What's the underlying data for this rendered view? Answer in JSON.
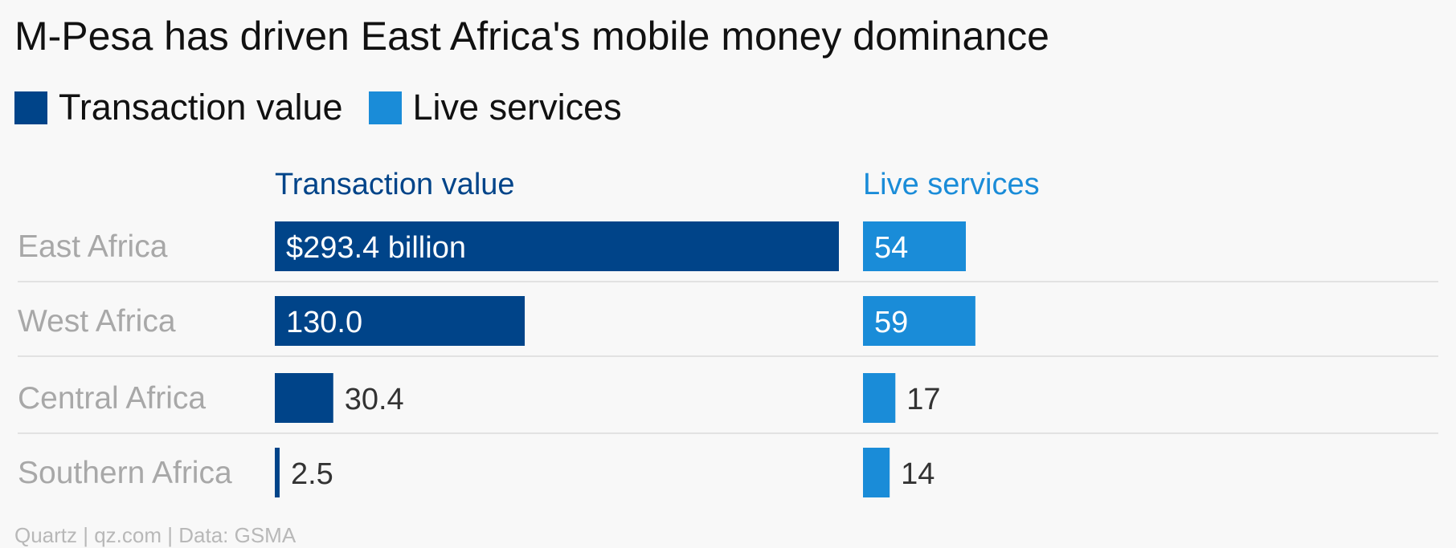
{
  "chart_data": {
    "type": "bar",
    "title": "M-Pesa has driven East Africa's mobile money dominance",
    "categories": [
      "East Africa",
      "West Africa",
      "Central Africa",
      "Southern Africa"
    ],
    "series": [
      {
        "name": "Transaction value",
        "values": [
          293.4,
          130.0,
          30.4,
          2.5
        ],
        "labels": [
          "$293.4 billion",
          "130.0",
          "30.4",
          "2.5"
        ],
        "color": "#004489"
      },
      {
        "name": "Live services",
        "values": [
          54,
          59,
          17,
          14
        ],
        "labels": [
          "54",
          "59",
          "17",
          "14"
        ],
        "color": "#1a8cd8"
      }
    ],
    "panel_headers": [
      "Transaction value",
      "Live services"
    ],
    "legend_position": "top-left",
    "grid": false
  },
  "source": "Quartz | qz.com | Data: GSMA",
  "colors": {
    "background": "#f8f8f8",
    "category_label": "#a8a8a8",
    "label_inside": "#ffffff",
    "label_outside": "#333333",
    "separator": "#e2e2e2"
  }
}
